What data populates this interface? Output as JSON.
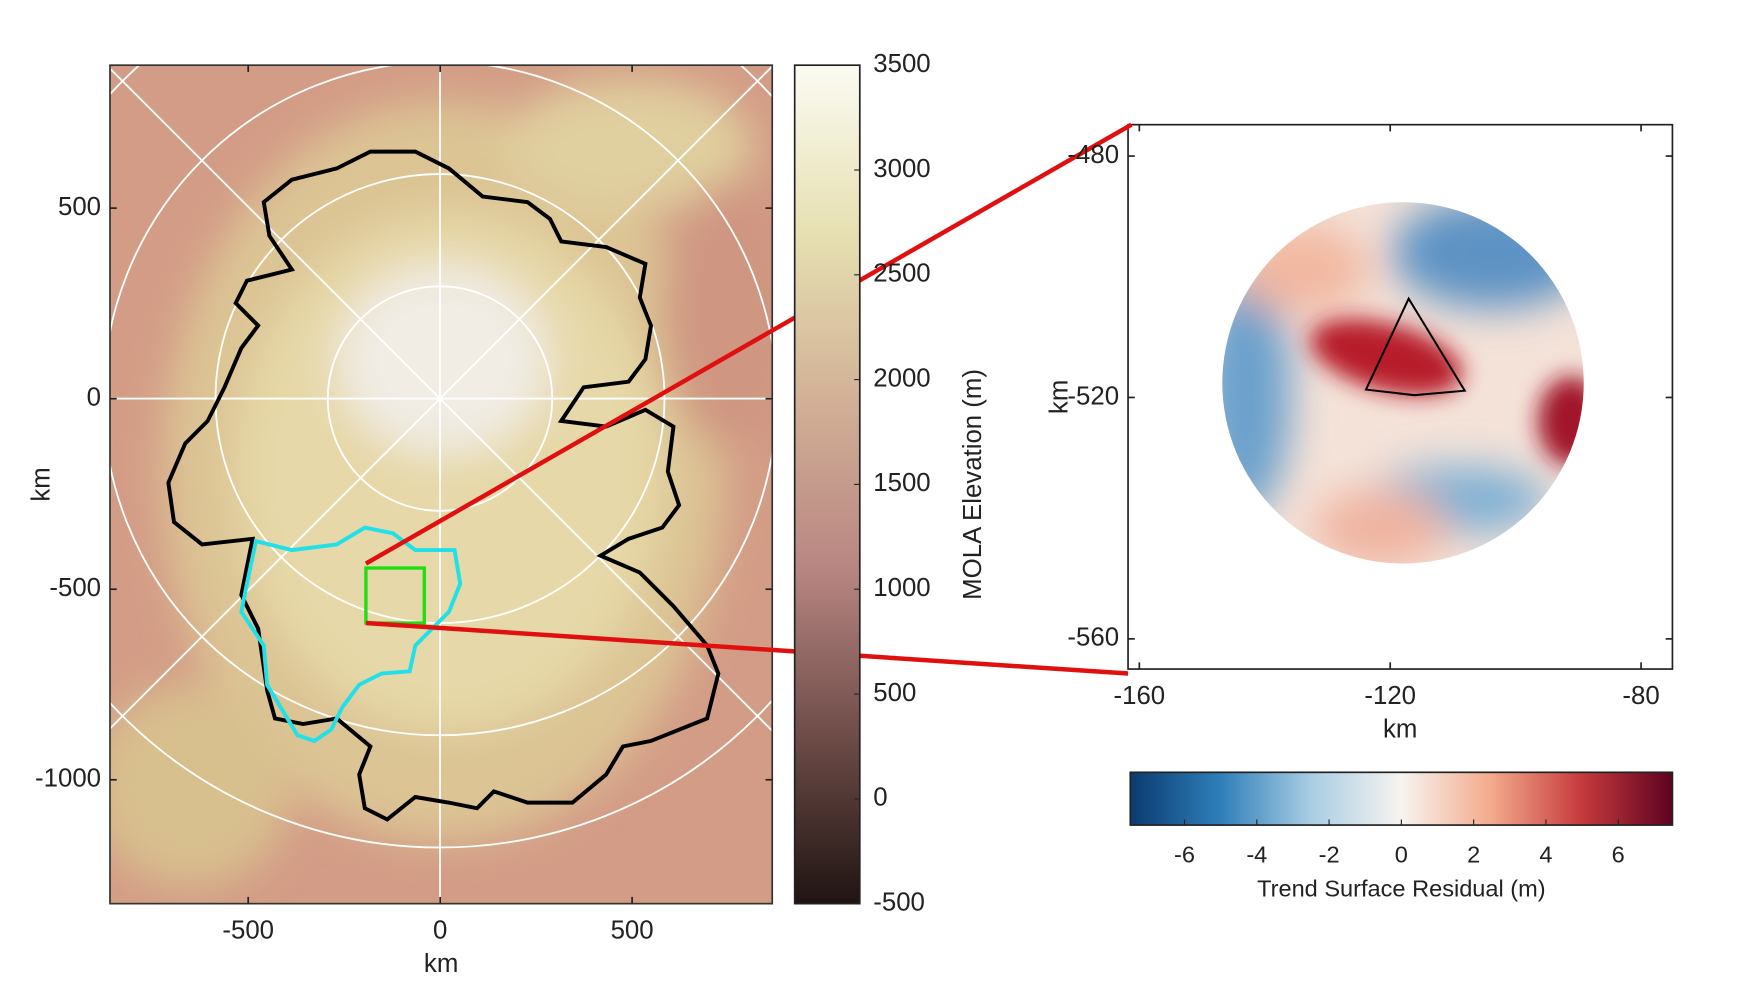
{
  "chart_data": [
    {
      "type": "map",
      "xlabel": "km",
      "ylabel": "km",
      "xlim": [
        -860,
        865
      ],
      "ylim": [
        -1325,
        875
      ],
      "xticks": [
        -500,
        0,
        500
      ],
      "yticks": [
        -1000,
        -500,
        0,
        500
      ]
    },
    {
      "type": "colorbar",
      "orientation": "vertical",
      "label": "MOLA Elevation (m)",
      "ylim": [
        -500,
        3500
      ],
      "yticks": [
        -500,
        0,
        500,
        1000,
        1500,
        2000,
        2500,
        3000,
        3500
      ],
      "colormap": [
        "#201412",
        "#6e4c48",
        "#b88682",
        "#d2b096",
        "#e6e0b2",
        "#fbfbf2"
      ]
    },
    {
      "type": "map",
      "xlabel": "km",
      "ylabel": "km",
      "xlim": [
        -161.8,
        -75
      ],
      "ylim": [
        -565,
        -474.8
      ],
      "xticks": [
        -160,
        -120,
        -80
      ],
      "yticks": [
        -560,
        -520,
        -480
      ]
    },
    {
      "type": "colorbar",
      "orientation": "horizontal",
      "label": "Trend Surface Residual (m)",
      "xlim": [
        -7.5,
        7.5
      ],
      "xticks": [
        -6,
        -4,
        -2,
        0,
        2,
        4,
        6
      ],
      "colormap": [
        "#0a3b70",
        "#2f7fba",
        "#a9cde3",
        "#f7f4f0",
        "#f3a98b",
        "#c63a3d",
        "#5e0220"
      ]
    }
  ]
}
